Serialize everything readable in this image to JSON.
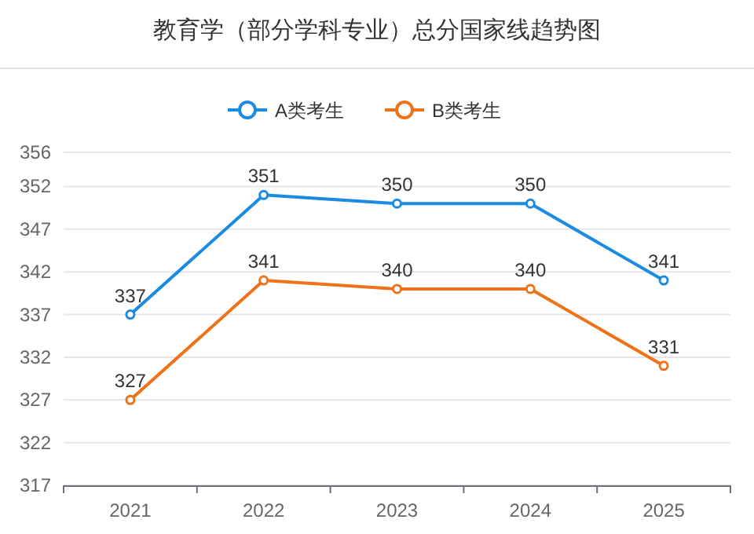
{
  "chart_data": {
    "type": "line",
    "title": "教育学（部分学科专业）总分国家线趋势图",
    "categories": [
      "2021",
      "2022",
      "2023",
      "2024",
      "2025"
    ],
    "series": [
      {
        "name": "A类考生",
        "color": "#1a8be3",
        "values": [
          337,
          351,
          350,
          350,
          341
        ]
      },
      {
        "name": "B类考生",
        "color": "#ef7219",
        "values": [
          327,
          341,
          340,
          340,
          331
        ]
      }
    ],
    "ylim": [
      317,
      356
    ],
    "yticks": [
      317,
      322,
      327,
      332,
      337,
      342,
      347,
      352,
      356
    ],
    "grid": "y",
    "legend": "top",
    "marker": "circle",
    "line_style": "solid",
    "data_labels": true
  }
}
